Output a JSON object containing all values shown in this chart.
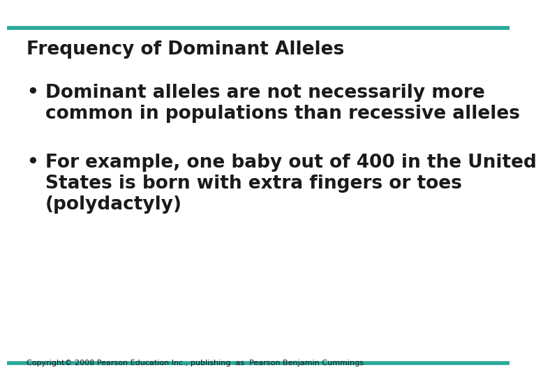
{
  "title": "Frequency of Dominant Alleles",
  "bullet1_line1": "Dominant alleles are not necessarily more",
  "bullet1_line2": "common in populations than recessive alleles",
  "bullet2_line1": "For example, one baby out of 400 in the United",
  "bullet2_line2": "States is born with extra fingers or toes",
  "bullet2_line3": "(polydactyly)",
  "copyright": "Copyright© 2008 Pearson Education Inc., publishing  as  Pearson Benjamin Cummings",
  "teal_color": "#2aa89a",
  "bg_color": "#ffffff",
  "text_color": "#1a1a1a",
  "title_fontsize": 19,
  "bullet_fontsize": 19,
  "copyright_fontsize": 8,
  "line_thickness": 4
}
